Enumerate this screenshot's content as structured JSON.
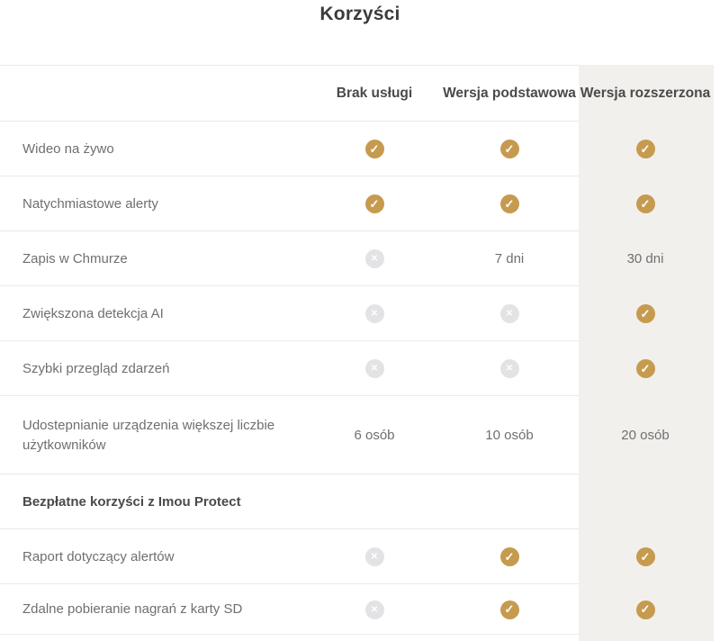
{
  "title": "Korzyści",
  "colors": {
    "accent": "#C69B4F",
    "disabled": "#E3E3E6",
    "highlight_bg": "#F2F0ED",
    "divider": "#ECEAE8"
  },
  "columns": [
    "Brak usługi",
    "Wersja podstawowa",
    "Wersja rozszerzona"
  ],
  "rows": [
    {
      "label": "Wideo na żywo",
      "cells": [
        "check",
        "check",
        "check"
      ]
    },
    {
      "label": "Natychmiastowe alerty",
      "cells": [
        "check",
        "check",
        "check"
      ]
    },
    {
      "label": "Zapis w Chmurze",
      "cells": [
        "x",
        "7 dni",
        "30 dni"
      ]
    },
    {
      "label": "Zwiększona detekcja AI",
      "cells": [
        "x",
        "x",
        "check"
      ]
    },
    {
      "label": "Szybki przegląd zdarzeń",
      "cells": [
        "x",
        "x",
        "check"
      ]
    },
    {
      "label": "Udostepnianie urządzenia większej liczbie użytkowników",
      "cells": [
        "6 osób",
        "10 osób",
        "20 osób"
      ],
      "two_line": true
    },
    {
      "label": "Bezpłatne korzyści z Imou Protect",
      "section": true
    },
    {
      "label": "Raport dotyczący alertów",
      "cells": [
        "x",
        "check",
        "check"
      ]
    },
    {
      "label": "Zdalne pobieranie nagrań z karty SD",
      "cells": [
        "x",
        "check",
        "check"
      ],
      "last": true
    }
  ],
  "icon_glyphs": {
    "check": "✓",
    "x": "✕"
  }
}
